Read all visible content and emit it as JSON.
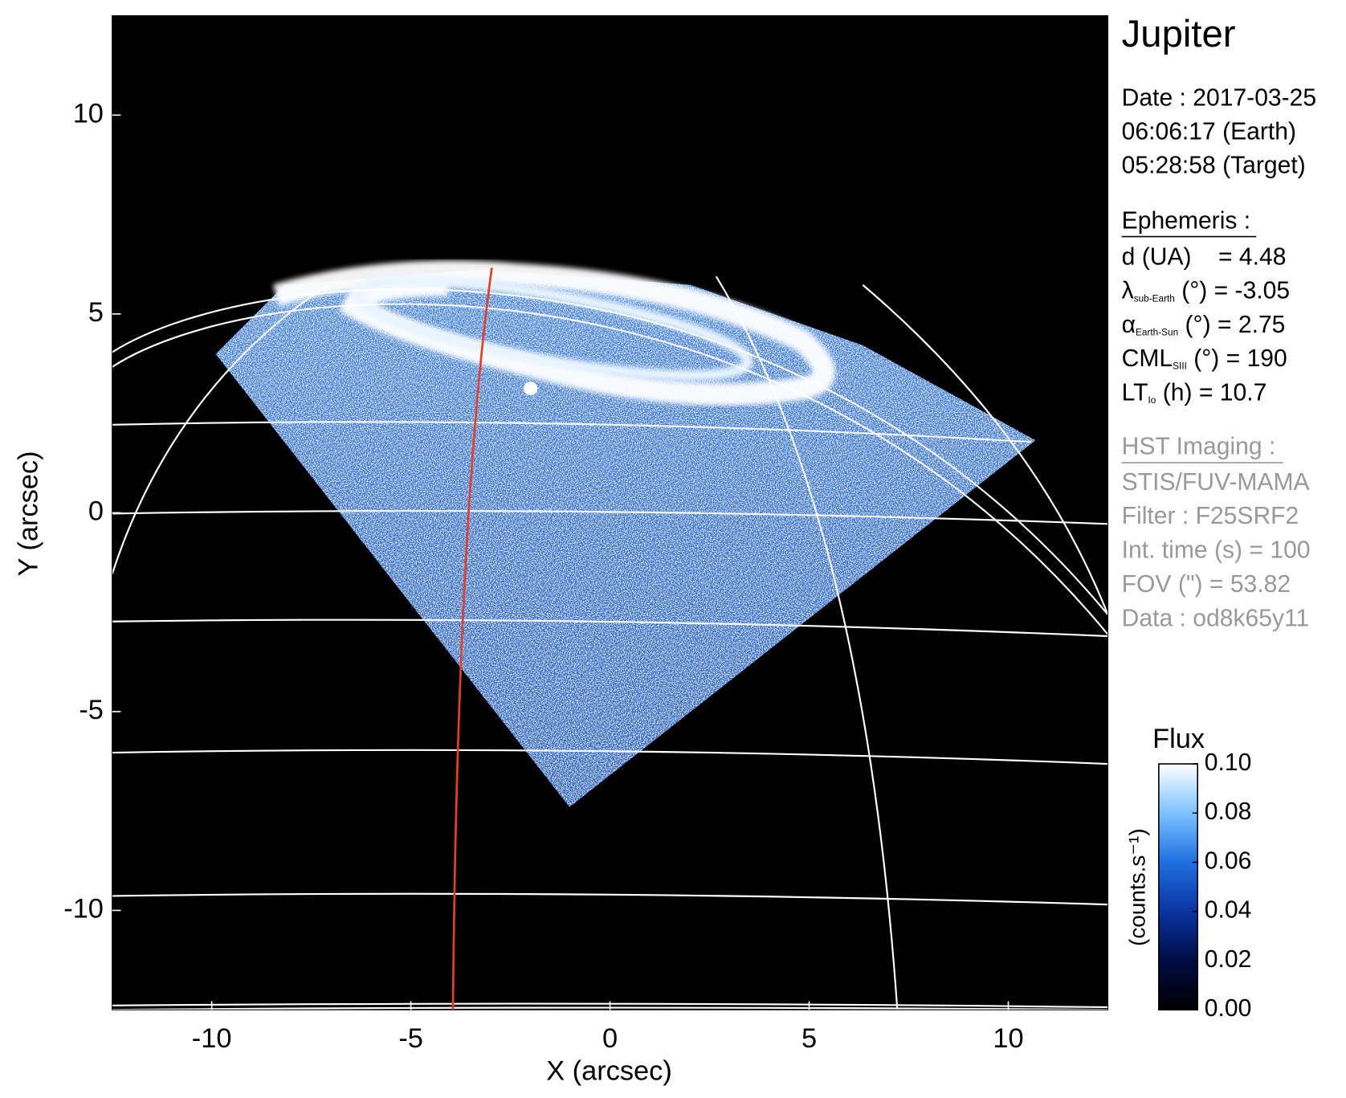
{
  "chart_data": {
    "type": "image",
    "xlabel": "X (arcsec)",
    "ylabel": "Y (arcsec)",
    "xlim": [
      -12.5,
      12.5
    ],
    "ylim": [
      -12.5,
      12.5
    ],
    "xticks": [
      -10,
      -5,
      0,
      5,
      10
    ],
    "yticks": [
      -10,
      -5,
      0,
      5,
      10
    ],
    "colorbar": {
      "title": "Flux",
      "label": "(counts.s⁻¹)",
      "lim": [
        0,
        0.1
      ],
      "ticks": [
        {
          "value": 0,
          "label": "0.00"
        },
        {
          "value": 0.02,
          "label": "0.02"
        },
        {
          "value": 0.04,
          "label": "0.04"
        },
        {
          "value": 0.06,
          "label": "0.06"
        },
        {
          "value": 0.08,
          "label": "0.08"
        },
        {
          "value": 0.1,
          "label": "0.10"
        }
      ],
      "colormap": [
        "#000000",
        "#000c45",
        "#0a34a0",
        "#1f6fe0",
        "#7cc2ff",
        "#ffffff"
      ]
    },
    "panel": {
      "title": "Jupiter",
      "date_lines": [
        "Date : 2017-03-25",
        "06:06:17 (Earth)",
        "05:28:58 (Target)"
      ],
      "ephemeris_heading": "Ephemeris :",
      "ephemeris": [
        {
          "main": "d (UA)    = 4.48"
        },
        {
          "main": "λ",
          "sub": "sub-Earth",
          "rest": " (°) = -3.05"
        },
        {
          "main": "α",
          "sub": "Earth-Sun",
          "rest": " (°) = 2.75"
        },
        {
          "main": "CML",
          "sub": "SIII",
          "rest": " (°) = 190"
        },
        {
          "main": "LT",
          "sub": "Io",
          "rest": " (h) = 10.7"
        }
      ],
      "imaging_heading": "HST Imaging :",
      "imaging": [
        "STIS/FUV-MAMA",
        "Filter : F25SRF2",
        "Int. time (s) = 100",
        "FOV (\") = 53.82",
        "Data : od8k65y11"
      ]
    }
  }
}
